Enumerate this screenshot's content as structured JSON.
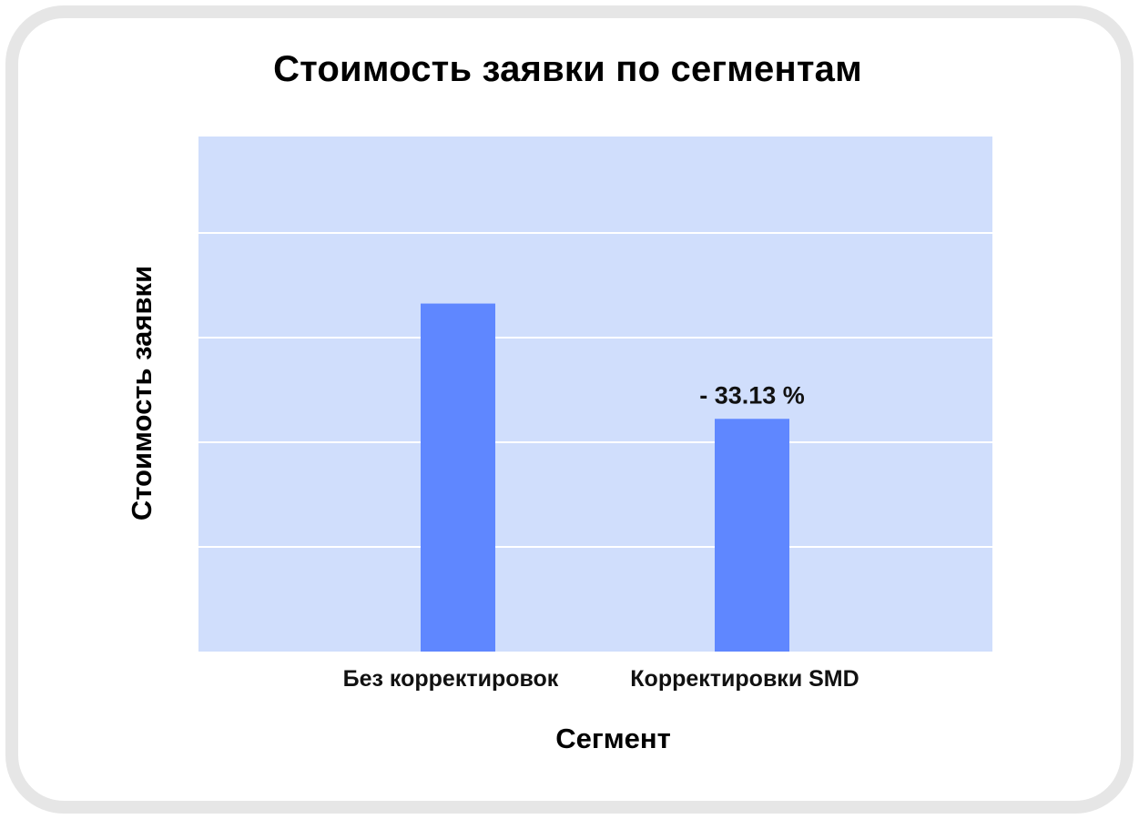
{
  "chart_data": {
    "type": "bar",
    "title": "Стоимость заявки по сегментам",
    "xlabel": "Сегмент",
    "ylabel": "Стоимость заявки",
    "categories": [
      "Без корректировок",
      "Корректировки SMD"
    ],
    "values": [
      100,
      66.87
    ],
    "data_labels": [
      "",
      "- 33.13 %"
    ],
    "ylim": [
      0,
      148
    ],
    "grid": true,
    "gridlines": 4,
    "colors": {
      "plot_background": "#d0defc",
      "bar": "#5f87ff",
      "grid": "#ffffff"
    }
  }
}
